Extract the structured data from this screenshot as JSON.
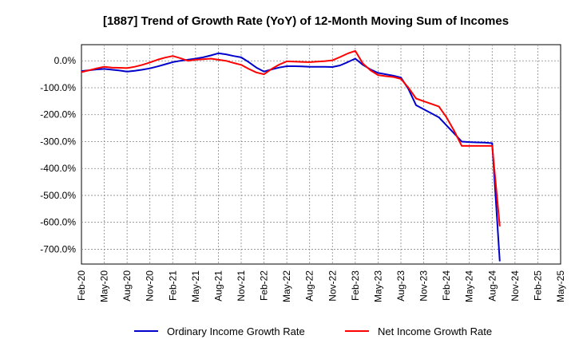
{
  "chart_data": {
    "type": "line",
    "title": "[1887]  Trend of Growth Rate (YoY) of 12-Month Moving Sum of Incomes",
    "xlabel": "",
    "ylabel": "",
    "x_ticks": [
      "Feb-20",
      "May-20",
      "Aug-20",
      "Nov-20",
      "Feb-21",
      "May-21",
      "Aug-21",
      "Nov-21",
      "Feb-22",
      "May-22",
      "Aug-22",
      "Nov-22",
      "Feb-23",
      "May-23",
      "Aug-23",
      "Nov-23",
      "Feb-24",
      "May-24",
      "Aug-24",
      "Nov-24",
      "Feb-25",
      "May-25"
    ],
    "y_ticks": [
      "0.0%",
      "-100.0%",
      "-200.0%",
      "-300.0%",
      "-400.0%",
      "-500.0%",
      "-600.0%",
      "-700.0%"
    ],
    "ylim": [
      -755,
      60
    ],
    "x_range_months": [
      0,
      63
    ],
    "grid": true,
    "legend_position": "bottom",
    "series": [
      {
        "name": "Ordinary Income Growth Rate",
        "color": "#0000cc",
        "x": [
          0,
          1,
          2,
          3,
          4,
          5,
          6,
          7,
          8,
          9,
          10,
          11,
          12,
          13,
          14,
          15,
          16,
          17,
          18,
          19,
          20,
          21,
          22,
          23,
          24,
          25,
          26,
          27,
          28,
          29,
          30,
          31,
          32,
          33,
          34,
          35,
          36,
          37,
          38,
          39,
          40,
          41,
          42,
          43,
          44,
          45,
          46,
          47,
          48,
          49,
          50,
          51,
          52,
          53,
          54,
          55
        ],
        "values": [
          -38,
          -35,
          -32,
          -30,
          -33,
          -36,
          -40,
          -37,
          -33,
          -28,
          -21,
          -13,
          -5,
          0,
          4,
          8,
          13,
          20,
          28,
          24,
          18,
          13,
          -5,
          -25,
          -40,
          -32,
          -25,
          -20,
          -20,
          -21,
          -22,
          -22,
          -22,
          -23,
          -17,
          -5,
          8,
          -15,
          -32,
          -45,
          -50,
          -55,
          -62,
          -105,
          -165,
          -180,
          -195,
          -210,
          -240,
          -270,
          -300,
          -302,
          -303,
          -304,
          -306,
          -745
        ]
      },
      {
        "name": "Net Income Growth Rate",
        "color": "#ff0000",
        "x": [
          0,
          1,
          2,
          3,
          4,
          5,
          6,
          7,
          8,
          9,
          10,
          11,
          12,
          13,
          14,
          15,
          16,
          17,
          18,
          19,
          20,
          21,
          22,
          23,
          24,
          25,
          26,
          27,
          28,
          29,
          30,
          31,
          32,
          33,
          34,
          35,
          36,
          37,
          38,
          39,
          40,
          41,
          42,
          43,
          44,
          45,
          46,
          47,
          48,
          49,
          50,
          51,
          52,
          53,
          54,
          55
        ],
        "values": [
          -42,
          -35,
          -28,
          -22,
          -25,
          -26,
          -27,
          -22,
          -15,
          -6,
          4,
          12,
          18,
          10,
          0,
          4,
          6,
          8,
          4,
          0,
          -8,
          -15,
          -30,
          -43,
          -50,
          -30,
          -14,
          -2,
          -3,
          -4,
          -5,
          -3,
          -1,
          2,
          14,
          27,
          37,
          -10,
          -35,
          -53,
          -57,
          -60,
          -67,
          -100,
          -140,
          -150,
          -160,
          -170,
          -210,
          -260,
          -316,
          -316,
          -316,
          -316,
          -316,
          -615
        ]
      }
    ]
  }
}
